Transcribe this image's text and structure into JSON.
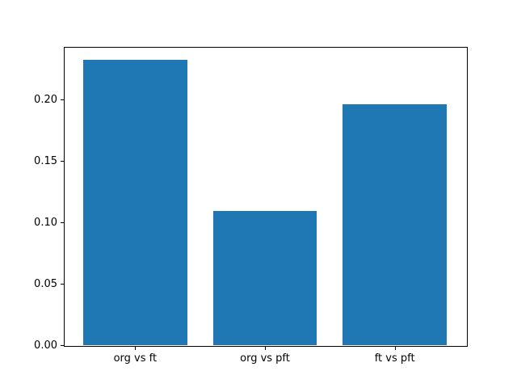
{
  "chart_data": {
    "type": "bar",
    "title": "",
    "xlabel": "",
    "ylabel": "",
    "categories": [
      "org vs ft",
      "org vs pft",
      "ft vs pft"
    ],
    "values": [
      0.232,
      0.109,
      0.196
    ],
    "ylim": [
      0,
      0.2428
    ],
    "yticks": [
      0.0,
      0.05,
      0.1,
      0.15,
      0.2
    ],
    "ytick_labels": [
      "0.00",
      "0.05",
      "0.10",
      "0.15",
      "0.20"
    ],
    "bar_width_fraction": 0.8,
    "x_margin": 0.55,
    "grid": false,
    "legend": null,
    "bar_color": "#1f77b4"
  },
  "colors": {
    "background": "#ffffff",
    "spine": "#000000",
    "text": "#000000",
    "bar": "#1f77b4"
  }
}
